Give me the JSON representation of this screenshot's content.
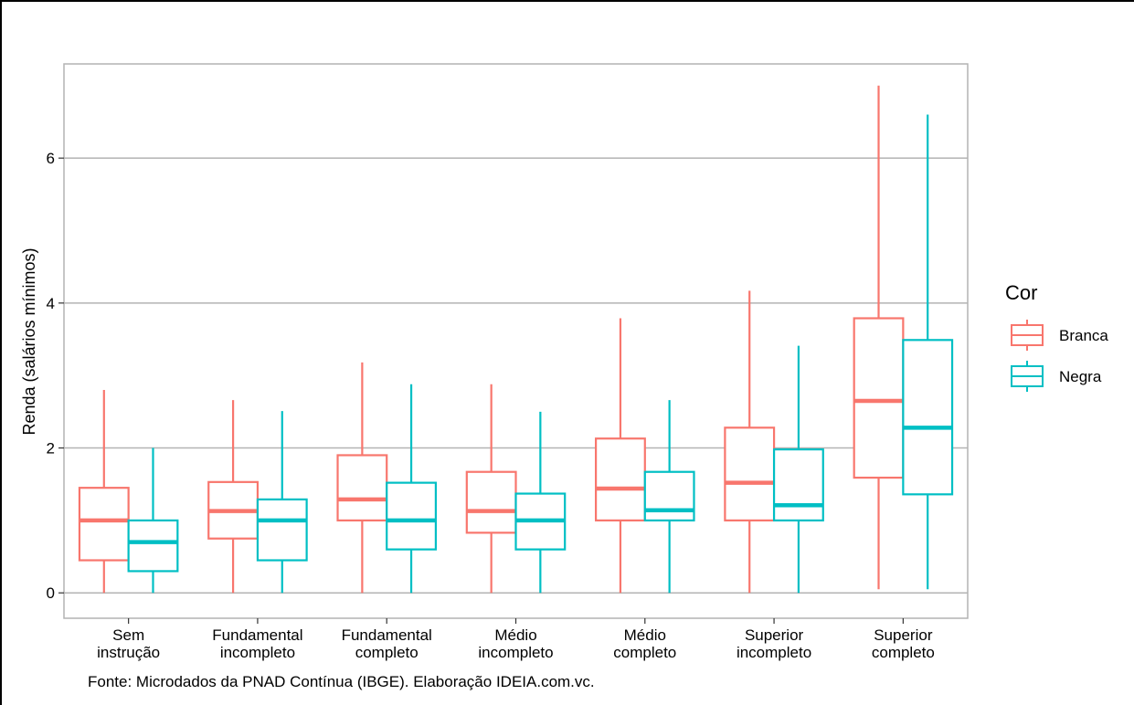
{
  "chart_data": {
    "type": "boxplot",
    "title": "",
    "xlabel": "",
    "ylabel": "Renda (salários mínimos)",
    "ylim": [
      -0.35,
      7.3
    ],
    "yticks": [
      0,
      2,
      4,
      6
    ],
    "grid": true,
    "legend_position": "right",
    "legend_title": "Cor",
    "categories": [
      [
        "Sem",
        "instrução"
      ],
      [
        "Fundamental",
        "incompleto"
      ],
      [
        "Fundamental",
        "completo"
      ],
      [
        "Médio",
        "incompleto"
      ],
      [
        "Médio",
        "completo"
      ],
      [
        "Superior",
        "incompleto"
      ],
      [
        "Superior",
        "completo"
      ]
    ],
    "series": [
      {
        "name": "Branca",
        "color": "#F8766D",
        "boxes": [
          {
            "lower_whisker": 0.0,
            "q1": 0.45,
            "median": 1.0,
            "q3": 1.45,
            "upper_whisker": 2.8
          },
          {
            "lower_whisker": 0.0,
            "q1": 0.75,
            "median": 1.13,
            "q3": 1.53,
            "upper_whisker": 2.66
          },
          {
            "lower_whisker": 0.0,
            "q1": 1.0,
            "median": 1.29,
            "q3": 1.9,
            "upper_whisker": 3.18
          },
          {
            "lower_whisker": 0.0,
            "q1": 0.83,
            "median": 1.13,
            "q3": 1.67,
            "upper_whisker": 2.88
          },
          {
            "lower_whisker": 0.0,
            "q1": 1.0,
            "median": 1.44,
            "q3": 2.13,
            "upper_whisker": 3.79
          },
          {
            "lower_whisker": 0.0,
            "q1": 1.0,
            "median": 1.52,
            "q3": 2.28,
            "upper_whisker": 4.17
          },
          {
            "lower_whisker": 0.05,
            "q1": 1.59,
            "median": 2.65,
            "q3": 3.79,
            "upper_whisker": 7.0
          }
        ]
      },
      {
        "name": "Negra",
        "color": "#00BFC4",
        "boxes": [
          {
            "lower_whisker": 0.0,
            "q1": 0.3,
            "median": 0.7,
            "q3": 1.0,
            "upper_whisker": 2.0
          },
          {
            "lower_whisker": 0.0,
            "q1": 0.45,
            "median": 1.0,
            "q3": 1.29,
            "upper_whisker": 2.51
          },
          {
            "lower_whisker": 0.0,
            "q1": 0.6,
            "median": 1.0,
            "q3": 1.52,
            "upper_whisker": 2.88
          },
          {
            "lower_whisker": 0.0,
            "q1": 0.6,
            "median": 1.0,
            "q3": 1.37,
            "upper_whisker": 2.5
          },
          {
            "lower_whisker": 0.0,
            "q1": 1.0,
            "median": 1.14,
            "q3": 1.67,
            "upper_whisker": 2.66
          },
          {
            "lower_whisker": 0.0,
            "q1": 1.0,
            "median": 1.21,
            "q3": 1.98,
            "upper_whisker": 3.41
          },
          {
            "lower_whisker": 0.05,
            "q1": 1.36,
            "median": 2.28,
            "q3": 3.49,
            "upper_whisker": 6.6
          }
        ]
      }
    ]
  },
  "caption": "Fonte: Microdados da PNAD Contínua (IBGE). Elaboração IDEIA.com.vc."
}
